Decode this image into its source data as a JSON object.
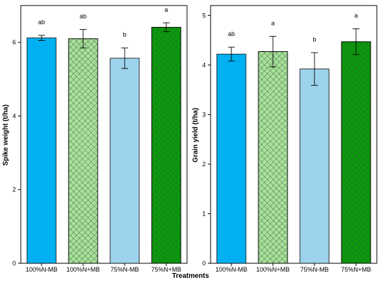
{
  "xlabel": "Treatments",
  "colors": {
    "bright_blue": "#00b0f0",
    "light_green": "#a9e19a",
    "light_blue": "#9dd3ec",
    "dark_green": "#0a9a0a",
    "hatch": "#2e5e3a"
  },
  "chart_data": [
    {
      "type": "bar",
      "ylabel": "Spike weight (t/ha)",
      "xlabel": "",
      "ylim": [
        0,
        7
      ],
      "yticks": [
        "0",
        "2",
        "4",
        "6"
      ],
      "categories": [
        "100%N-MB",
        "100%N+MB",
        "75%N-MB",
        "75%N+MB"
      ],
      "values": [
        6.12,
        6.1,
        5.57,
        6.41
      ],
      "errors": [
        0.07,
        0.25,
        0.28,
        0.12
      ],
      "letters": [
        "ab",
        "ab",
        "b",
        "a"
      ],
      "fills": [
        "bright_blue",
        "light_green",
        "light_blue",
        "dark_green"
      ],
      "hatched": [
        false,
        true,
        false,
        true
      ],
      "grid": false
    },
    {
      "type": "bar",
      "ylabel": "Grain yield (t/ha)",
      "xlabel": "",
      "ylim": [
        0,
        5.2
      ],
      "yticks": [
        "0",
        "1",
        "2",
        "3",
        "4",
        "5"
      ],
      "categories": [
        "100%N-MB",
        "100%N+MB",
        "75%N-MB",
        "75%N+MB"
      ],
      "values": [
        4.22,
        4.27,
        3.92,
        4.47
      ],
      "errors": [
        0.14,
        0.31,
        0.33,
        0.26
      ],
      "letters": [
        "ab",
        "a",
        "b",
        "a"
      ],
      "fills": [
        "bright_blue",
        "light_green",
        "light_blue",
        "dark_green"
      ],
      "hatched": [
        false,
        true,
        false,
        true
      ],
      "grid": false
    }
  ]
}
